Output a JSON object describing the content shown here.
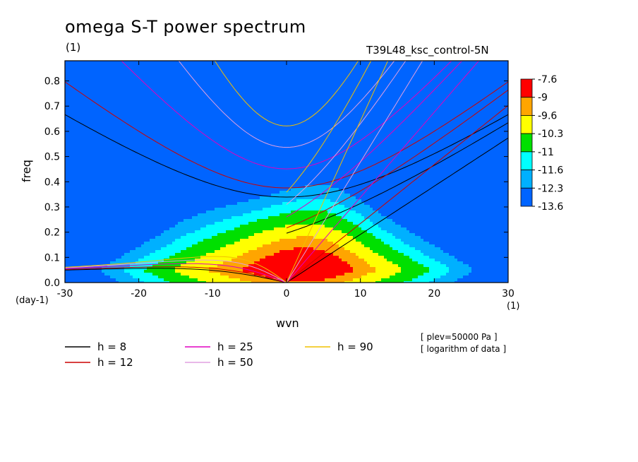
{
  "title": "omega S-T power spectrum",
  "subtitle_left": "(1)",
  "subtitle_right": "T39L48_ksc_control-5N",
  "notes": [
    "[ plev=50000 Pa ]",
    "[ logarithm of data ]"
  ],
  "chart_data": {
    "type": "heatmap",
    "title": "omega S-T power spectrum",
    "xlabel": "wvn",
    "ylabel": "freq",
    "x_unit": "(1)",
    "y_unit": "(day-1)",
    "xlim": [
      -30,
      30
    ],
    "ylim": [
      0,
      0.88
    ],
    "xticks": [
      -30,
      -20,
      -10,
      0,
      10,
      20,
      30
    ],
    "yticks": [
      0.0,
      0.1,
      0.2,
      0.3,
      0.4,
      0.5,
      0.6,
      0.7,
      0.8
    ],
    "xtick_labels": [
      "-30",
      "-20",
      "-10",
      "0",
      "10",
      "20",
      "30"
    ],
    "ytick_labels": [
      "0.0",
      "0.1",
      "0.2",
      "0.3",
      "0.4",
      "0.5",
      "0.6",
      "0.7",
      "0.8"
    ],
    "colorbar": {
      "labels": [
        "-7.6",
        "-9",
        "-9.6",
        "-10.3",
        "-11",
        "-11.6",
        "-12.3",
        "-13.6"
      ],
      "colors": [
        "#ff0000",
        "#ffa500",
        "#ffff00",
        "#00e000",
        "#00ffff",
        "#00b0ff",
        "#0064ff"
      ]
    },
    "contour_colors": [
      "#ff0000",
      "#ffa500",
      "#ffff00",
      "#00e000",
      "#00ffff",
      "#00b0ff",
      "#0064ff"
    ],
    "dispersion_curves": [
      {
        "label": "h =  8",
        "h": 8,
        "color": "#000000"
      },
      {
        "label": "h = 12",
        "h": 12,
        "color": "#cc0000"
      },
      {
        "label": "h = 25",
        "h": 25,
        "color": "#e000c0"
      },
      {
        "label": "h = 50",
        "h": 50,
        "color": "#e0a0e0"
      },
      {
        "label": "h = 90",
        "h": 90,
        "color": "#f0c000"
      }
    ],
    "grid": false,
    "legend_position": "bottom"
  }
}
